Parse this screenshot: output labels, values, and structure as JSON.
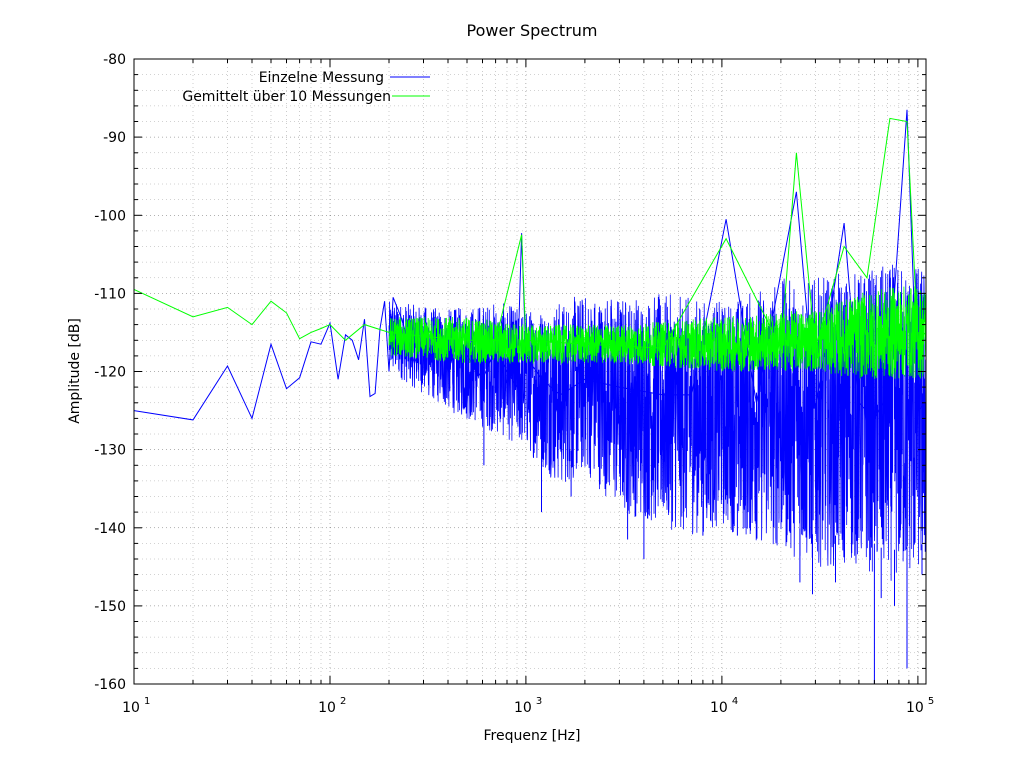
{
  "chart_data": {
    "type": "line",
    "title": "Power Spectrum",
    "xlabel": "Frequenz [Hz]",
    "ylabel": "Amplitude [dB]",
    "x_scale": "log",
    "xlim": [
      10,
      110000
    ],
    "ylim": [
      -160,
      -80
    ],
    "grid": true,
    "legend_position": "top-left",
    "x_ticks": [
      {
        "base": "10",
        "exp": "1"
      },
      {
        "base": "10",
        "exp": "2"
      },
      {
        "base": "10",
        "exp": "3"
      },
      {
        "base": "10",
        "exp": "4"
      },
      {
        "base": "10",
        "exp": "5"
      }
    ],
    "y_ticks": [
      "-80",
      "-90",
      "-100",
      "-110",
      "-120",
      "-130",
      "-140",
      "-150",
      "-160"
    ],
    "series": [
      {
        "name": "Einzelne Messung",
        "color": "#0000ff",
        "points": [
          [
            10,
            -125
          ],
          [
            20,
            -126.2
          ],
          [
            30,
            -119.3
          ],
          [
            40,
            -126
          ],
          [
            50,
            -116.5
          ],
          [
            60,
            -122.2
          ],
          [
            70,
            -120.8
          ],
          [
            80,
            -116.2
          ],
          [
            90,
            -116.5
          ],
          [
            100,
            -113.8
          ],
          [
            110,
            -121
          ],
          [
            120,
            -115.3
          ],
          [
            130,
            -116
          ],
          [
            140,
            -118.5
          ],
          [
            150,
            -113.3
          ],
          [
            160,
            -123.2
          ],
          [
            170,
            -122.8
          ],
          [
            180,
            -114.5
          ],
          [
            190,
            -111
          ],
          [
            200,
            -120
          ],
          [
            210,
            -110.5
          ],
          [
            230,
            -113
          ],
          [
            250,
            -116
          ],
          [
            270,
            -119
          ],
          [
            300,
            -115
          ],
          [
            330,
            -118
          ],
          [
            360,
            -114
          ],
          [
            400,
            -120
          ],
          [
            450,
            -116
          ],
          [
            500,
            -118
          ],
          [
            600,
            -121
          ],
          [
            700,
            -117
          ],
          [
            800,
            -120
          ],
          [
            900,
            -122
          ],
          [
            950,
            -102.3
          ],
          [
            1000,
            -118
          ],
          [
            1200,
            -121
          ],
          [
            1500,
            -123
          ],
          [
            2000,
            -121
          ],
          [
            3000,
            -122
          ],
          [
            5000,
            -123
          ],
          [
            7000,
            -123
          ],
          [
            10500,
            -100.5
          ],
          [
            15000,
            -124
          ],
          [
            24000,
            -97
          ],
          [
            30000,
            -125
          ],
          [
            42000,
            -101
          ],
          [
            50000,
            -124
          ],
          [
            60000,
            -126
          ],
          [
            70000,
            -123
          ],
          [
            88000,
            -86.5
          ],
          [
            100000,
            -125
          ],
          [
            110000,
            -124
          ]
        ],
        "envelope_upper": [
          [
            200,
            -111
          ],
          [
            400,
            -112
          ],
          [
            700,
            -111
          ],
          [
            1000,
            -112
          ],
          [
            2000,
            -110
          ],
          [
            3000,
            -110
          ],
          [
            5000,
            -110
          ],
          [
            10000,
            -111
          ],
          [
            20000,
            -108
          ],
          [
            30000,
            -108
          ],
          [
            50000,
            -107
          ],
          [
            80000,
            -106
          ],
          [
            110000,
            -106
          ]
        ],
        "envelope_lower": [
          [
            200,
            -120
          ],
          [
            400,
            -125
          ],
          [
            700,
            -128
          ],
          [
            1000,
            -130
          ],
          [
            1500,
            -135
          ],
          [
            2000,
            -133
          ],
          [
            3000,
            -138
          ],
          [
            5000,
            -140
          ],
          [
            7000,
            -141
          ],
          [
            10000,
            -140
          ],
          [
            15000,
            -142
          ],
          [
            20000,
            -143
          ],
          [
            30000,
            -145
          ],
          [
            50000,
            -145
          ],
          [
            70000,
            -147
          ],
          [
            110000,
            -146
          ]
        ],
        "min_spikes": [
          [
            610,
            -132
          ],
          [
            1200,
            -138
          ],
          [
            1700,
            -136
          ],
          [
            3300,
            -141.5
          ],
          [
            4000,
            -144
          ],
          [
            8000,
            -141
          ],
          [
            12000,
            -141
          ],
          [
            25000,
            -147
          ],
          [
            29000,
            -148.5
          ],
          [
            38000,
            -147
          ],
          [
            60000,
            -160
          ],
          [
            65000,
            -149
          ],
          [
            76000,
            -150
          ],
          [
            88000,
            -158
          ],
          [
            105000,
            -146
          ]
        ]
      },
      {
        "name": "Gemittelt über 10 Messungen",
        "color": "#00ff00",
        "points": [
          [
            10,
            -109.5
          ],
          [
            20,
            -113
          ],
          [
            30,
            -111.8
          ],
          [
            40,
            -114
          ],
          [
            50,
            -111
          ],
          [
            60,
            -112.5
          ],
          [
            70,
            -115.8
          ],
          [
            80,
            -115
          ],
          [
            90,
            -114.5
          ],
          [
            100,
            -114
          ],
          [
            120,
            -116
          ],
          [
            150,
            -114
          ],
          [
            200,
            -115
          ],
          [
            300,
            -115.5
          ],
          [
            500,
            -116
          ],
          [
            700,
            -116
          ],
          [
            950,
            -102.5
          ],
          [
            1000,
            -116
          ],
          [
            2000,
            -116.5
          ],
          [
            5000,
            -117
          ],
          [
            10500,
            -103
          ],
          [
            20000,
            -117
          ],
          [
            24000,
            -92
          ],
          [
            30000,
            -117
          ],
          [
            42000,
            -104
          ],
          [
            55000,
            -108
          ],
          [
            72000,
            -87.6
          ],
          [
            88000,
            -88
          ],
          [
            100000,
            -116
          ],
          [
            110000,
            -115
          ]
        ],
        "envelope_upper": [
          [
            200,
            -113
          ],
          [
            500,
            -113
          ],
          [
            1000,
            -114
          ],
          [
            3000,
            -114
          ],
          [
            10000,
            -113
          ],
          [
            30000,
            -112
          ],
          [
            50000,
            -110
          ],
          [
            80000,
            -109
          ],
          [
            110000,
            -109
          ]
        ],
        "envelope_lower": [
          [
            200,
            -118
          ],
          [
            500,
            -119
          ],
          [
            1000,
            -119
          ],
          [
            3000,
            -119
          ],
          [
            10000,
            -120
          ],
          [
            30000,
            -120
          ],
          [
            50000,
            -121
          ],
          [
            80000,
            -121
          ],
          [
            110000,
            -121
          ]
        ]
      }
    ]
  }
}
